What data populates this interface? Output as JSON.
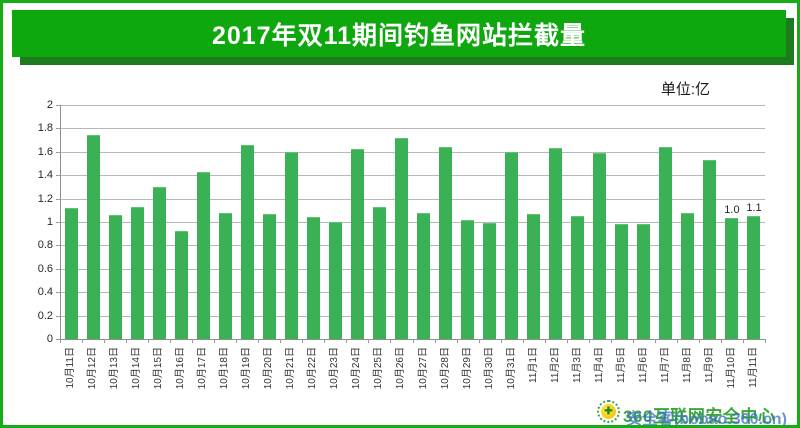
{
  "page": {
    "border_color": "#17ab17",
    "background_color": "#ffffff"
  },
  "header": {
    "title": "2017年双11期间钓鱼网站拦截量",
    "bg_color": "#0ea80e",
    "shadow_color": "#1d7a1d",
    "text_color": "#ffffff"
  },
  "chart_data": {
    "type": "bar",
    "title": "2017年双11期间钓鱼网站拦截量",
    "unit_label": "单位:亿",
    "xlabel": "",
    "ylabel": "",
    "ylim": [
      0,
      2
    ],
    "ytick_step": 0.2,
    "ytick_labels": [
      "0",
      "0.2",
      "0.4",
      "0.6",
      "0.8",
      "1",
      "1.2",
      "1.4",
      "1.6",
      "1.8",
      "2"
    ],
    "grid": true,
    "legend": false,
    "bar_color": "#3ab154",
    "grid_color": "#b7b7b7",
    "categories": [
      "10月11日",
      "10月12日",
      "10月13日",
      "10月14日",
      "10月15日",
      "10月16日",
      "10月17日",
      "10月18日",
      "10月19日",
      "10月20日",
      "10月21日",
      "10月22日",
      "10月23日",
      "10月24日",
      "10月25日",
      "10月26日",
      "10月27日",
      "10月28日",
      "10月29日",
      "10月30日",
      "10月31日",
      "11月1日",
      "11月2日",
      "11月3日",
      "11月4日",
      "11月5日",
      "11月6日",
      "11月7日",
      "11月8日",
      "11月9日",
      "11月10日",
      "11月11日"
    ],
    "values": [
      1.12,
      1.74,
      1.06,
      1.13,
      1.3,
      0.92,
      1.43,
      1.08,
      1.66,
      1.07,
      1.6,
      1.04,
      1.0,
      1.62,
      1.13,
      1.72,
      1.08,
      1.64,
      1.02,
      0.99,
      1.6,
      1.07,
      1.63,
      1.05,
      1.59,
      0.98,
      0.98,
      1.64,
      1.08,
      1.53,
      1.03,
      1.05
    ],
    "point_labels": [
      null,
      null,
      null,
      null,
      null,
      null,
      null,
      null,
      null,
      null,
      null,
      null,
      null,
      null,
      null,
      null,
      null,
      null,
      null,
      null,
      null,
      null,
      null,
      null,
      null,
      null,
      null,
      null,
      null,
      null,
      "1.0",
      "1.1"
    ]
  },
  "footer": {
    "logo": "360-safe-logo",
    "logo_glyph": "✚",
    "watermark_green": "360互联网安全中心",
    "watermark_blue": "安全客(bobao.360.cn)"
  }
}
